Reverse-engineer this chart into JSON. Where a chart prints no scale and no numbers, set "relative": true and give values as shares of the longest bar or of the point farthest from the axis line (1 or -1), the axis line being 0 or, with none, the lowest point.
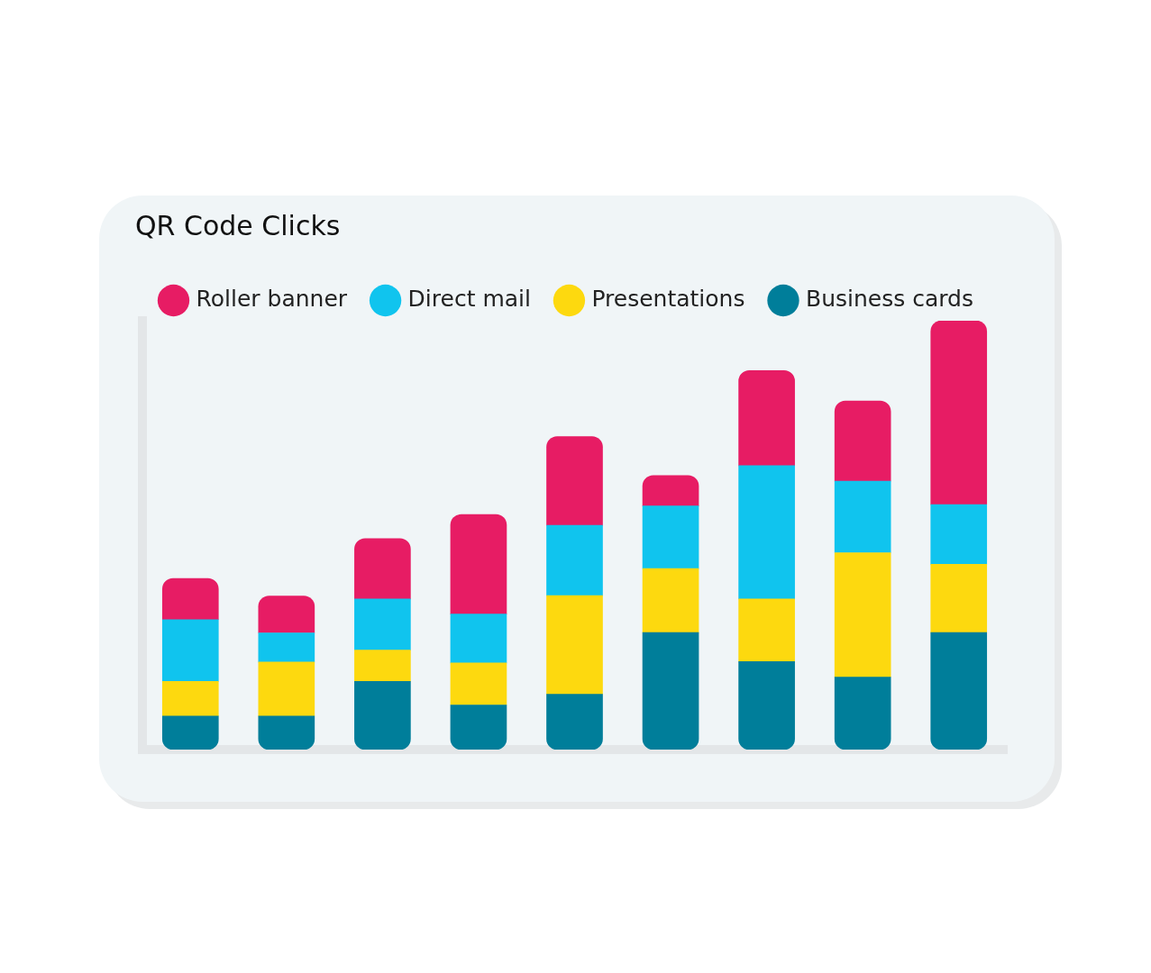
{
  "chart_data": {
    "type": "bar",
    "title": "QR Code Clicks",
    "stacked": true,
    "relative": true,
    "grid": false,
    "legend": "top left",
    "categories": [
      null,
      null,
      null,
      null,
      null,
      null,
      null,
      null,
      null
    ],
    "series": [
      {
        "name": "Business cards",
        "color": "#007e9a",
        "values": [
          0.078,
          0.078,
          0.159,
          0.104,
          0.129,
          0.273,
          0.205,
          0.169,
          0.273
        ]
      },
      {
        "name": "Presentations",
        "color": "#fdd90f",
        "values": [
          0.081,
          0.126,
          0.073,
          0.098,
          0.23,
          0.149,
          0.146,
          0.29,
          0.159
        ]
      },
      {
        "name": "Direct mail",
        "color": "#10c4ee",
        "values": [
          0.144,
          0.068,
          0.119,
          0.114,
          0.164,
          0.146,
          0.311,
          0.167,
          0.139
        ]
      },
      {
        "name": "Roller banner",
        "color": "#e71c64",
        "values": [
          0.096,
          0.086,
          0.141,
          0.232,
          0.207,
          0.071,
          0.222,
          0.187,
          0.429
        ]
      }
    ]
  }
}
